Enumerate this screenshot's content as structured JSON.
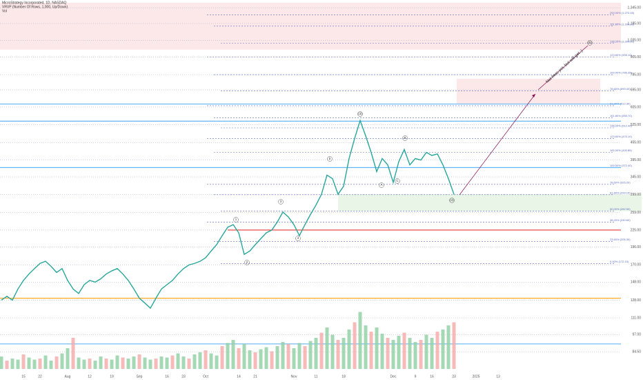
{
  "chart_data": {
    "type": "line",
    "title": "MicroStrategy Incorporated, 1D, NASDAQ",
    "subtitle": "VRVP (Number Of Rows, 1,000, Up/Down)",
    "volume_label": "Vol",
    "log_scale": true,
    "grid": true,
    "ylim": [
      73.6,
      1400
    ],
    "yticks": [
      {
        "value": 1345,
        "label": "1,345.00"
      },
      {
        "value": 1185,
        "label": "1,185.00"
      },
      {
        "value": 1035,
        "label": "1,035.00"
      },
      {
        "value": 905,
        "label": "905.00"
      },
      {
        "value": 785,
        "label": "785.00"
      },
      {
        "value": 695,
        "label": "695.00"
      },
      {
        "value": 605,
        "label": "605.00"
      },
      {
        "value": 525,
        "label": "525.00"
      },
      {
        "value": 455,
        "label": "455.00"
      },
      {
        "value": 395,
        "label": "395.00"
      },
      {
        "value": 345,
        "label": "345.00"
      },
      {
        "value": 299,
        "label": "299.00"
      },
      {
        "value": 259,
        "label": "259.00"
      },
      {
        "value": 225,
        "label": "225.00"
      },
      {
        "value": 196,
        "label": "196.00"
      },
      {
        "value": 170,
        "label": "170.00"
      },
      {
        "value": 148,
        "label": "148.00"
      },
      {
        "value": 128,
        "label": "128.00"
      },
      {
        "value": 111,
        "label": "111.00"
      },
      {
        "value": 97,
        "label": "97.00"
      },
      {
        "value": 84.5,
        "label": "84.50"
      }
    ],
    "y2lim": [
      0,
      100
    ],
    "categories": [
      null,
      null,
      null,
      null,
      "15",
      null,
      null,
      "22",
      null,
      null,
      null,
      null,
      "Aug",
      null,
      null,
      null,
      "12",
      null,
      null,
      null,
      "19",
      null,
      null,
      null,
      null,
      "Sep",
      null,
      null,
      null,
      null,
      "16",
      null,
      null,
      "23",
      null,
      null,
      null,
      "Oct",
      null,
      null,
      null,
      null,
      null,
      "14",
      null,
      null,
      "21",
      null,
      null,
      null,
      null,
      null,
      null,
      "Nov",
      null,
      null,
      null,
      "11",
      null,
      null,
      null,
      null,
      "18",
      null,
      null,
      null,
      null,
      null,
      null,
      null,
      null,
      "Dec",
      null,
      null,
      null,
      "9",
      null,
      null,
      "16",
      null,
      null,
      null,
      "23",
      null,
      null,
      null,
      "2025",
      null,
      null,
      null,
      "13"
    ],
    "series": [
      {
        "name": "Price",
        "color": "#26a69a",
        "values": [
          128,
          132,
          128,
          140,
          150,
          158,
          165,
          172,
          175,
          168,
          160,
          165,
          150,
          140,
          135,
          145,
          150,
          148,
          152,
          158,
          162,
          165,
          158,
          150,
          140,
          130,
          125,
          120,
          130,
          140,
          145,
          150,
          158,
          165,
          170,
          172,
          175,
          180,
          190,
          200,
          215,
          230,
          235,
          220,
          185,
          190,
          200,
          210,
          220,
          225,
          240,
          260,
          250,
          235,
          215,
          235,
          255,
          275,
          300,
          350,
          340,
          300,
          320,
          400,
          470,
          543,
          480,
          420,
          360,
          400,
          380,
          330,
          390,
          430,
          380,
          400,
          395,
          420,
          410,
          415,
          380,
          340,
          300,
          null,
          null,
          null,
          null,
          null,
          null,
          null,
          null
        ]
      },
      {
        "name": "Volume",
        "axis": "y2",
        "color": "#8fcfa2",
        "values": [
          12,
          8,
          10,
          9,
          14,
          11,
          9,
          10,
          13,
          8,
          12,
          15,
          20,
          30,
          11,
          9,
          10,
          8,
          12,
          10,
          9,
          13,
          11,
          10,
          12,
          14,
          11,
          9,
          10,
          12,
          11,
          13,
          15,
          12,
          10,
          14,
          16,
          18,
          15,
          13,
          22,
          25,
          28,
          20,
          24,
          18,
          16,
          19,
          21,
          17,
          22,
          26,
          24,
          20,
          25,
          22,
          27,
          30,
          35,
          40,
          33,
          28,
          30,
          38,
          45,
          55,
          42,
          36,
          40,
          34,
          30,
          28,
          32,
          35,
          30,
          26,
          28,
          33,
          30,
          36,
          38,
          42,
          45,
          null,
          null,
          null,
          null,
          null,
          null,
          null,
          null
        ]
      }
    ],
    "levels": [
      {
        "value": 1270,
        "label": "200.00% (1,270.45)"
      },
      {
        "value": 1160,
        "label": "161.80% (1,160.22)"
      },
      {
        "value": 1010,
        "label": "138.20% (1,009.80)"
      },
      {
        "value": 905,
        "label": "123.60% (905.10)"
      },
      {
        "value": 785,
        "label": "100.00% (785.35)"
      },
      {
        "value": 690,
        "label": "78.60% (690.40)"
      },
      {
        "value": 612,
        "label": "61.80% (612.30)"
      },
      {
        "value": 555,
        "label": "161.80% (555.70)"
      },
      {
        "value": 512,
        "label": "138.20% (512.40)"
      },
      {
        "value": 470,
        "label": "123.60% (470.10)"
      },
      {
        "value": 420,
        "label": "100.00% (420.85)"
      },
      {
        "value": 372,
        "label": "100.00% (372.40)"
      },
      {
        "value": 325,
        "label": "78.60% (325.20)"
      },
      {
        "value": 299,
        "label": "61.80% (299.15)"
      },
      {
        "value": 262,
        "label": "50.00% (262.50)"
      },
      {
        "value": 240,
        "label": "38.20% (240.60)"
      },
      {
        "value": 205,
        "label": "23.60% (205.30)"
      },
      {
        "value": 172,
        "label": "0.00% (172.10)"
      }
    ],
    "lines": [
      {
        "value": 225,
        "color": "#e53935"
      },
      {
        "value": 130,
        "color": "#ffa726"
      },
      {
        "value": 372,
        "color": "#64b5f6"
      },
      {
        "value": 540,
        "color": "#64b5f6"
      },
      {
        "value": 620,
        "color": "#64b5f6"
      },
      {
        "value": 90,
        "color": "#64b5f6"
      }
    ],
    "zones": [
      {
        "low": 960,
        "high": 1400,
        "color": "#fde2e4"
      },
      {
        "low": 620,
        "high": 760,
        "color": "#fde2e4"
      },
      {
        "low": 262,
        "high": 300,
        "color": "#e3f3e1"
      }
    ],
    "waves": [
      "1",
      "2",
      "3",
      "4",
      "5",
      "A",
      "B",
      "C",
      "(3)",
      "(4)",
      "(5)"
    ],
    "annotation": "Not here yet, but will get :)"
  }
}
